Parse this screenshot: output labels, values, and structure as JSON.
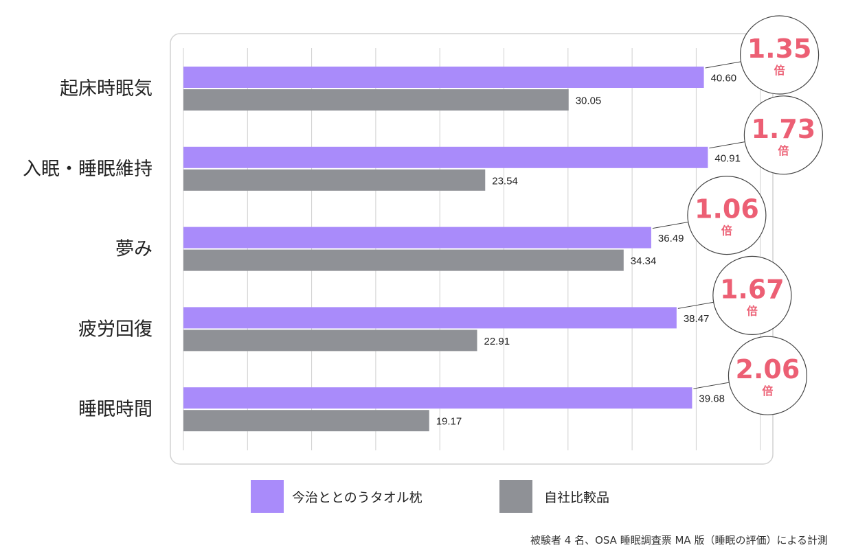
{
  "chart_data": {
    "type": "bar",
    "orientation": "horizontal",
    "categories": [
      "起床時眠気",
      "入眠・睡眠維持",
      "夢み",
      "疲労回復",
      "睡眠時間"
    ],
    "series": [
      {
        "name": "今治ととのうタオル枕",
        "color": "#a98bfa",
        "values": [
          40.6,
          40.91,
          36.49,
          38.47,
          39.68
        ],
        "value_labels": [
          "40.60",
          "40.91",
          "36.49",
          "38.47",
          "39.68"
        ]
      },
      {
        "name": "自社比較品",
        "color": "#8f9196",
        "values": [
          30.05,
          23.54,
          34.34,
          22.91,
          19.17
        ],
        "value_labels": [
          "30.05",
          "23.54",
          "34.34",
          "22.91",
          "19.17"
        ]
      }
    ],
    "ratios": [
      "1.35",
      "1.73",
      "1.06",
      "1.67",
      "2.06"
    ],
    "ratio_unit": "倍",
    "ratio_color": "#ec5f74",
    "xlim": [
      0,
      45
    ],
    "grid": true,
    "legend_position": "bottom",
    "note": "被験者 4 名、OSA 睡眠調査票 MA 版（睡眠の評価）による計測"
  }
}
